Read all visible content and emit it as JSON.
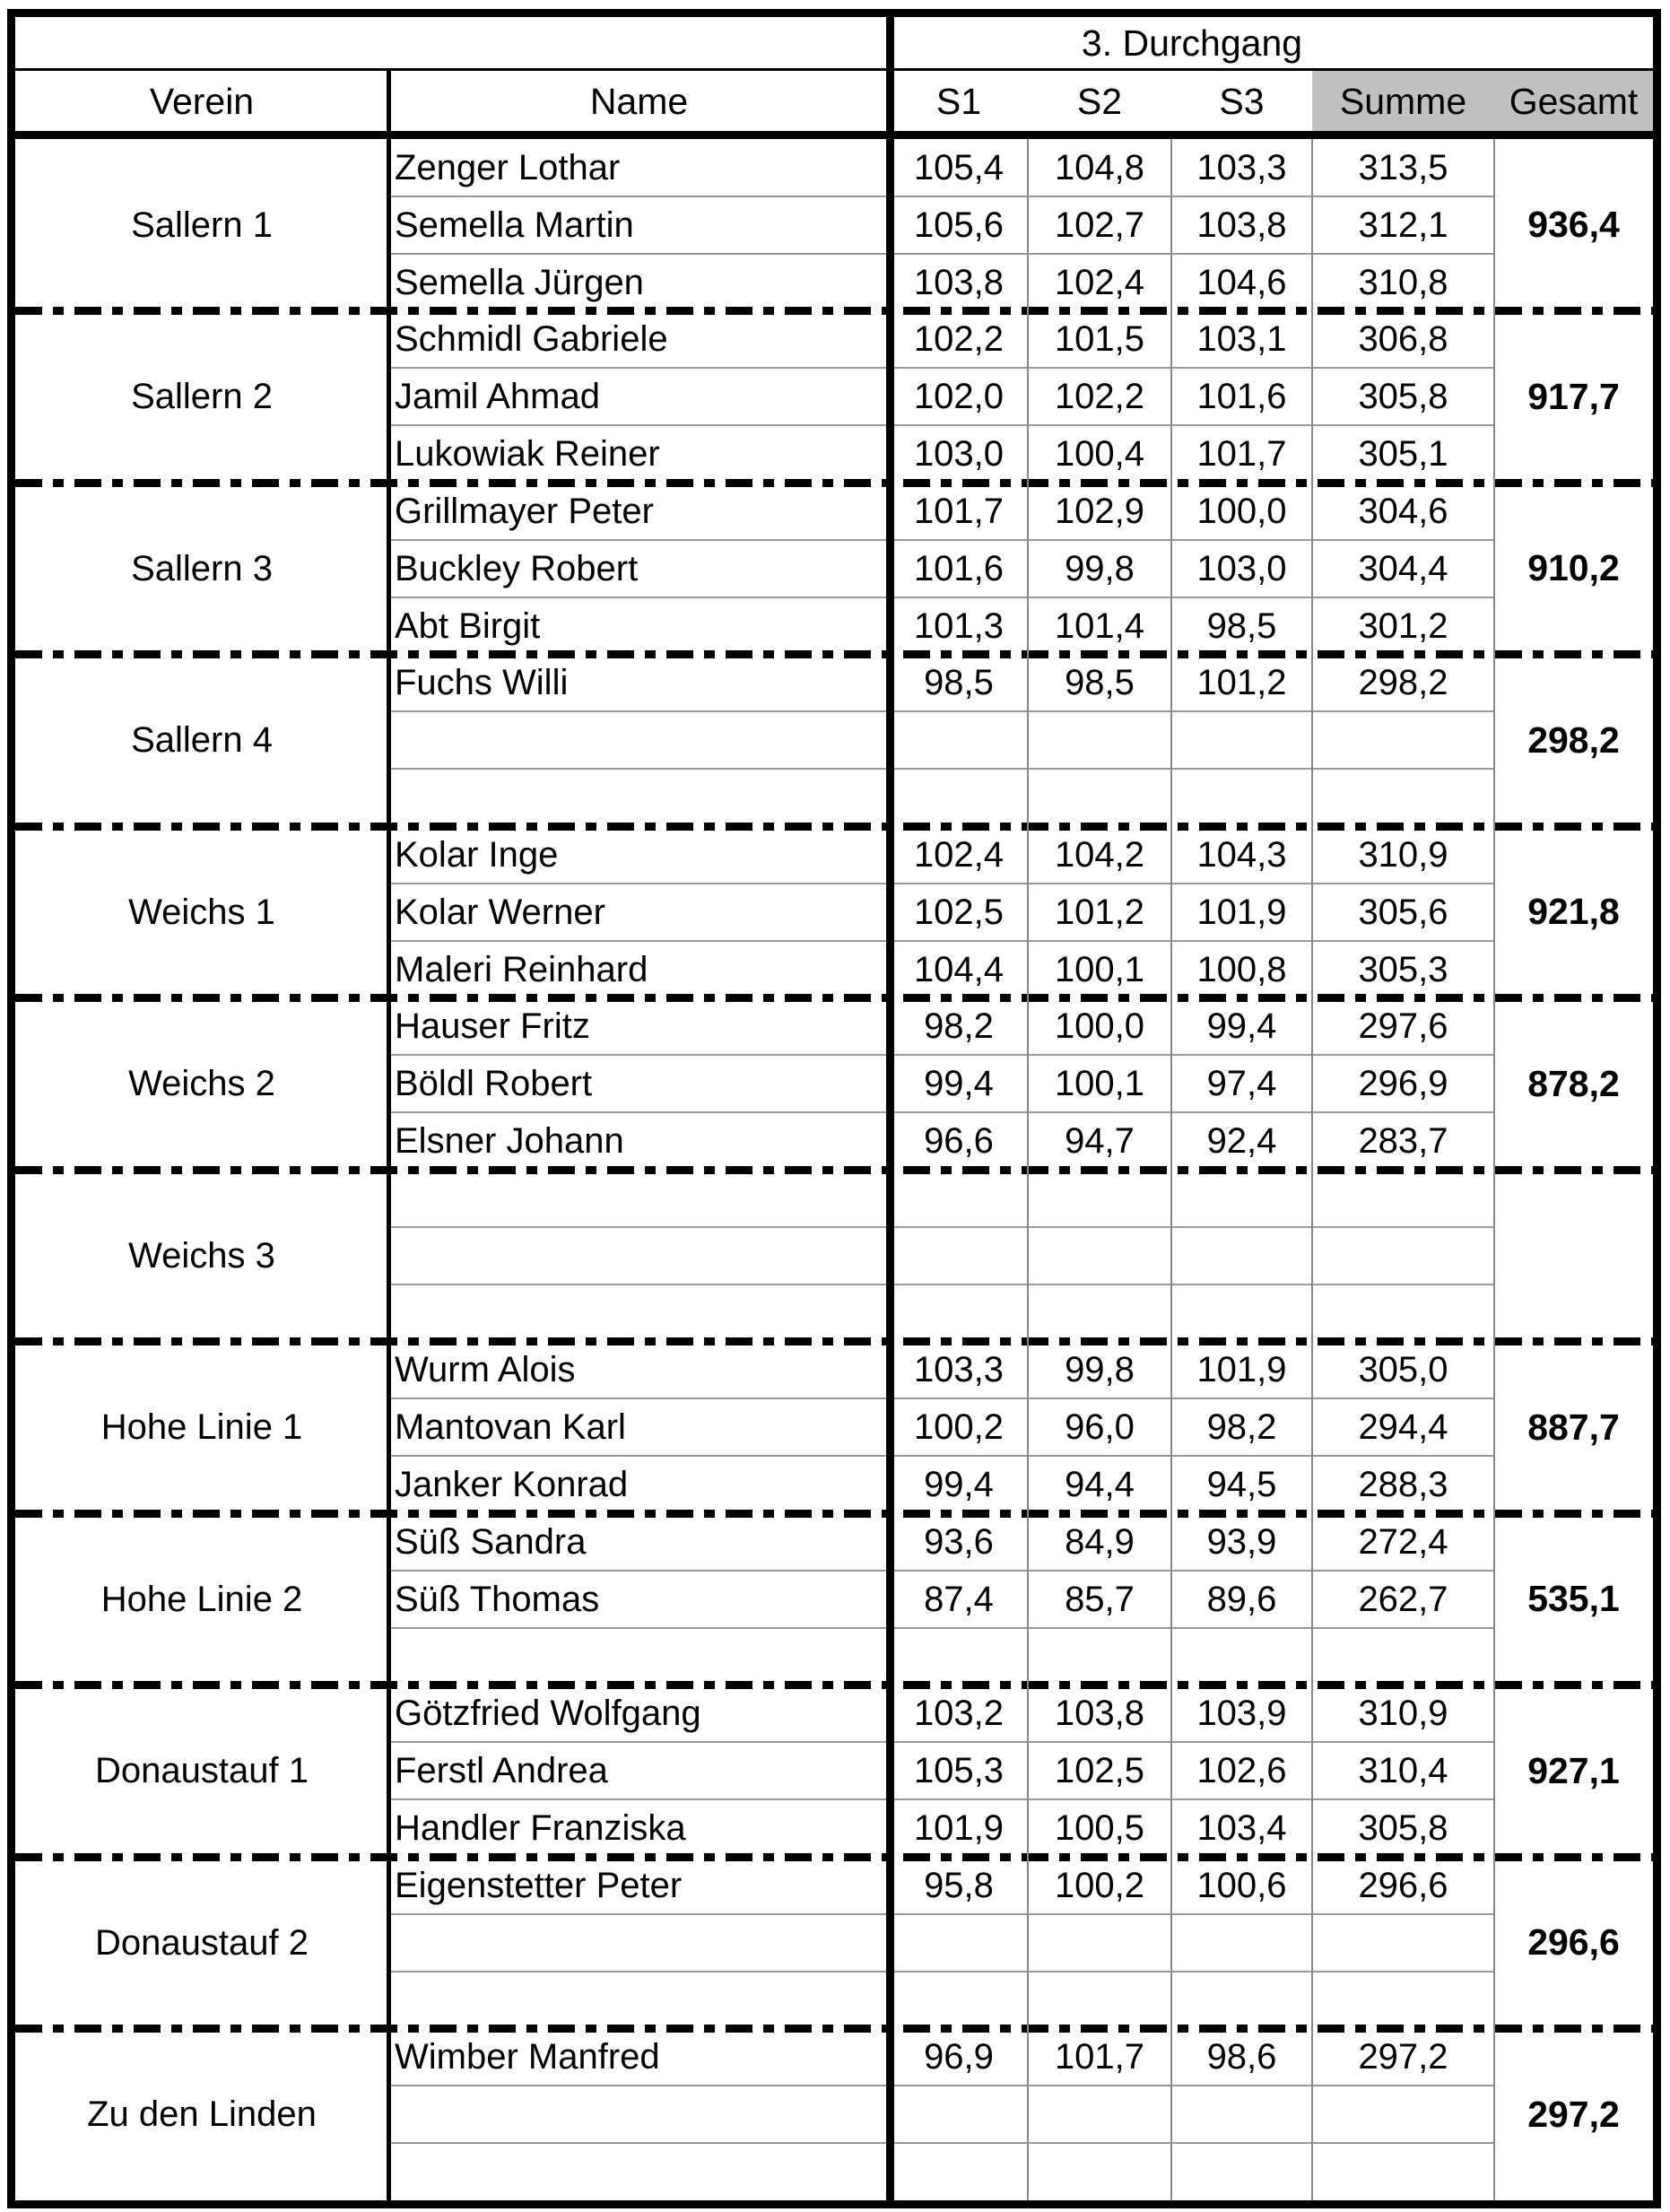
{
  "sheet": {
    "round_header": "3. Durchgang",
    "columns": {
      "verein": "Verein",
      "name": "Name",
      "s1": "S1",
      "s2": "S2",
      "s3": "S3",
      "summe": "Summe",
      "gesamt": "Gesamt"
    },
    "colors": {
      "header_highlight": "#c0c0c0"
    },
    "groups": [
      {
        "verein": "Sallern 1",
        "gesamt": "936,4",
        "players": [
          {
            "name": "Zenger Lothar",
            "s1": "105,4",
            "s2": "104,8",
            "s3": "103,3",
            "summe": "313,5"
          },
          {
            "name": "Semella Martin",
            "s1": "105,6",
            "s2": "102,7",
            "s3": "103,8",
            "summe": "312,1"
          },
          {
            "name": "Semella Jürgen",
            "s1": "103,8",
            "s2": "102,4",
            "s3": "104,6",
            "summe": "310,8"
          }
        ]
      },
      {
        "verein": "Sallern 2",
        "gesamt": "917,7",
        "players": [
          {
            "name": "Schmidl Gabriele",
            "s1": "102,2",
            "s2": "101,5",
            "s3": "103,1",
            "summe": "306,8"
          },
          {
            "name": "Jamil Ahmad",
            "s1": "102,0",
            "s2": "102,2",
            "s3": "101,6",
            "summe": "305,8"
          },
          {
            "name": "Lukowiak Reiner",
            "s1": "103,0",
            "s2": "100,4",
            "s3": "101,7",
            "summe": "305,1"
          }
        ]
      },
      {
        "verein": "Sallern 3",
        "gesamt": "910,2",
        "players": [
          {
            "name": "Grillmayer Peter",
            "s1": "101,7",
            "s2": "102,9",
            "s3": "100,0",
            "summe": "304,6"
          },
          {
            "name": "Buckley Robert",
            "s1": "101,6",
            "s2": "99,8",
            "s3": "103,0",
            "summe": "304,4"
          },
          {
            "name": "Abt Birgit",
            "s1": "101,3",
            "s2": "101,4",
            "s3": "98,5",
            "summe": "301,2"
          }
        ]
      },
      {
        "verein": "Sallern 4",
        "gesamt": "298,2",
        "players": [
          {
            "name": "Fuchs Willi",
            "s1": "98,5",
            "s2": "98,5",
            "s3": "101,2",
            "summe": "298,2"
          }
        ]
      },
      {
        "verein": "Weichs 1",
        "gesamt": "921,8",
        "players": [
          {
            "name": "Kolar Inge",
            "s1": "102,4",
            "s2": "104,2",
            "s3": "104,3",
            "summe": "310,9"
          },
          {
            "name": "Kolar Werner",
            "s1": "102,5",
            "s2": "101,2",
            "s3": "101,9",
            "summe": "305,6"
          },
          {
            "name": "Maleri Reinhard",
            "s1": "104,4",
            "s2": "100,1",
            "s3": "100,8",
            "summe": "305,3"
          }
        ]
      },
      {
        "verein": "Weichs 2",
        "gesamt": "878,2",
        "players": [
          {
            "name": "Hauser Fritz",
            "s1": "98,2",
            "s2": "100,0",
            "s3": "99,4",
            "summe": "297,6"
          },
          {
            "name": "Böldl Robert",
            "s1": "99,4",
            "s2": "100,1",
            "s3": "97,4",
            "summe": "296,9"
          },
          {
            "name": "Elsner Johann",
            "s1": "96,6",
            "s2": "94,7",
            "s3": "92,4",
            "summe": "283,7"
          }
        ]
      },
      {
        "verein": "Weichs 3",
        "gesamt": "",
        "players": []
      },
      {
        "verein": "Hohe Linie 1",
        "gesamt": "887,7",
        "players": [
          {
            "name": "Wurm Alois",
            "s1": "103,3",
            "s2": "99,8",
            "s3": "101,9",
            "summe": "305,0"
          },
          {
            "name": "Mantovan Karl",
            "s1": "100,2",
            "s2": "96,0",
            "s3": "98,2",
            "summe": "294,4"
          },
          {
            "name": "Janker Konrad",
            "s1": "99,4",
            "s2": "94,4",
            "s3": "94,5",
            "summe": "288,3"
          }
        ]
      },
      {
        "verein": "Hohe Linie 2",
        "gesamt": "535,1",
        "players": [
          {
            "name": "Süß Sandra",
            "s1": "93,6",
            "s2": "84,9",
            "s3": "93,9",
            "summe": "272,4"
          },
          {
            "name": "Süß Thomas",
            "s1": "87,4",
            "s2": "85,7",
            "s3": "89,6",
            "summe": "262,7"
          }
        ]
      },
      {
        "verein": "Donaustauf 1",
        "gesamt": "927,1",
        "players": [
          {
            "name": "Götzfried Wolfgang",
            "s1": "103,2",
            "s2": "103,8",
            "s3": "103,9",
            "summe": "310,9"
          },
          {
            "name": "Ferstl Andrea",
            "s1": "105,3",
            "s2": "102,5",
            "s3": "102,6",
            "summe": "310,4"
          },
          {
            "name": "Handler Franziska",
            "s1": "101,9",
            "s2": "100,5",
            "s3": "103,4",
            "summe": "305,8"
          }
        ]
      },
      {
        "verein": "Donaustauf 2",
        "gesamt": "296,6",
        "players": [
          {
            "name": "Eigenstetter Peter",
            "s1": "95,8",
            "s2": "100,2",
            "s3": "100,6",
            "summe": "296,6"
          }
        ]
      },
      {
        "verein": "Zu den Linden",
        "gesamt": "297,2",
        "players": [
          {
            "name": "Wimber Manfred",
            "s1": "96,9",
            "s2": "101,7",
            "s3": "98,6",
            "summe": "297,2"
          }
        ]
      }
    ]
  }
}
